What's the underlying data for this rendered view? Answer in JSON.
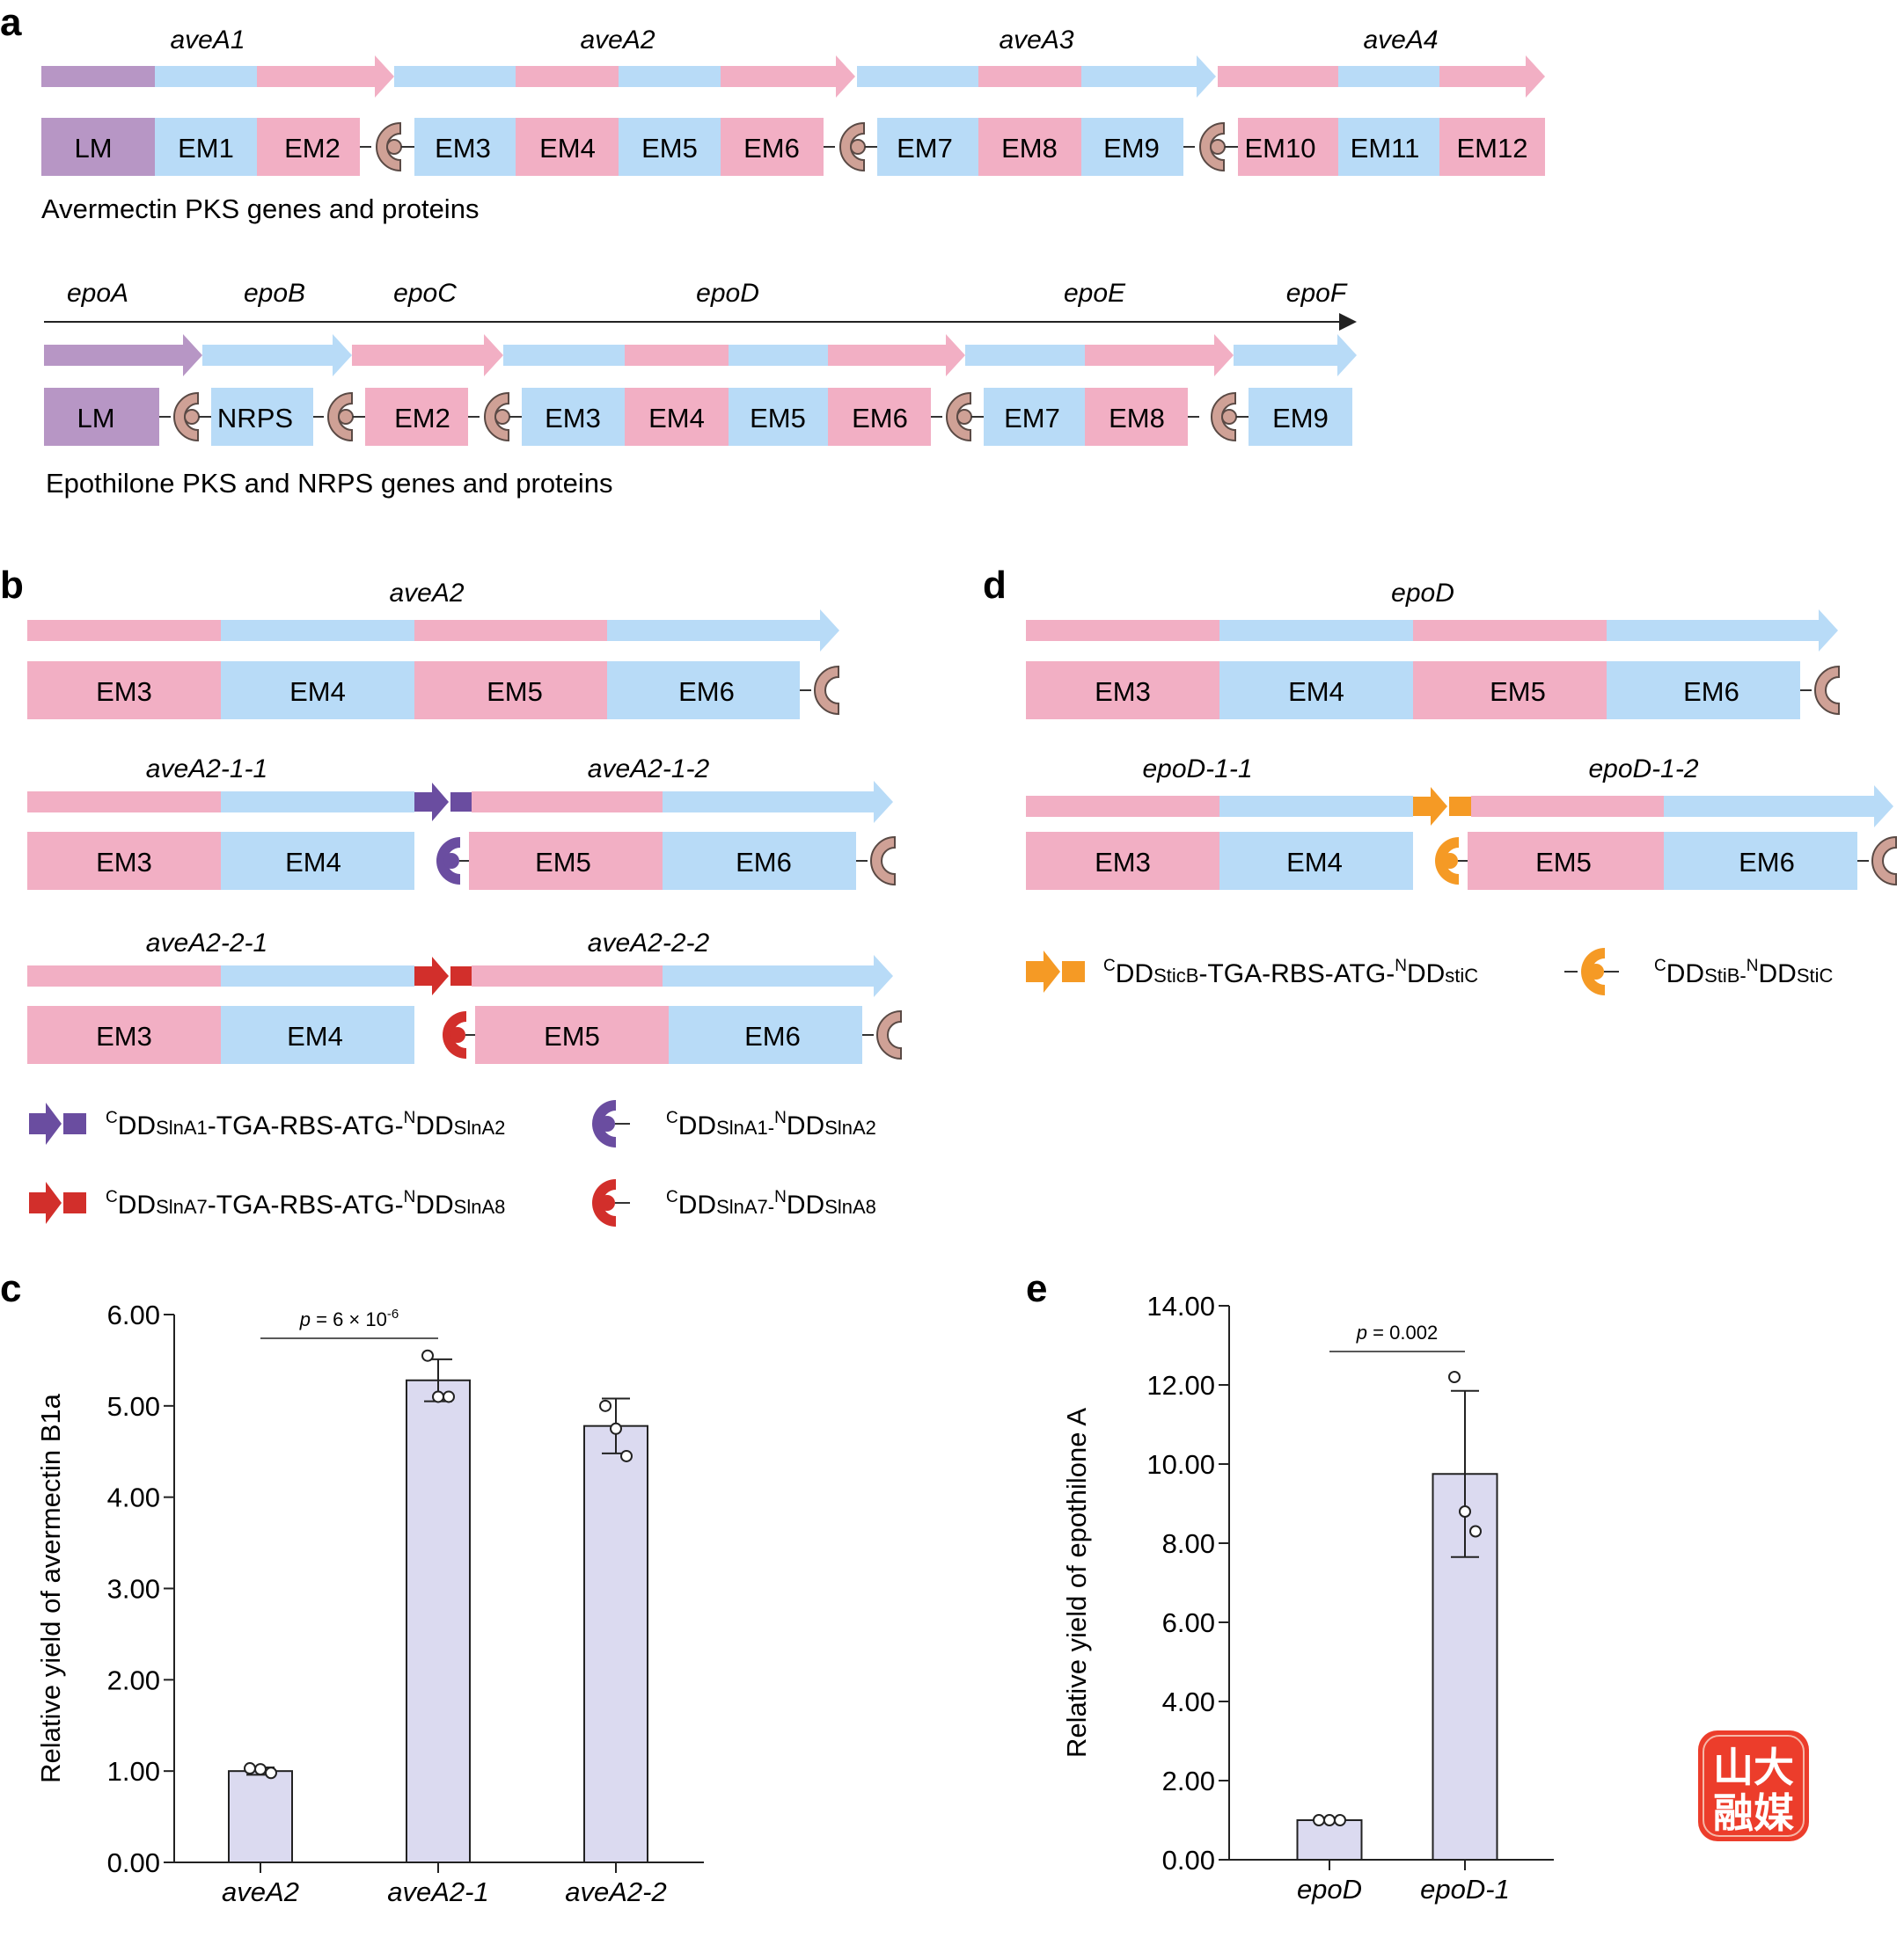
{
  "colors": {
    "pink": "#f2afc4",
    "blue": "#b8dbf7",
    "purple": "#b796c5",
    "docking": "#cfa196",
    "docking_dark": "#5a4a45",
    "slna12": "#6a4da0",
    "slna78": "#d22f2b",
    "stic": "#f59a25",
    "bar": "#dbdaf0"
  },
  "panel_a": {
    "label": "a",
    "avermectin": {
      "genes": [
        "aveA1",
        "aveA2",
        "aveA3",
        "aveA4"
      ],
      "modules": [
        "LM",
        "EM1",
        "EM2",
        "EM3",
        "EM4",
        "EM5",
        "EM6",
        "EM7",
        "EM8",
        "EM9",
        "EM10",
        "EM11",
        "EM12"
      ],
      "caption": "Avermectin PKS genes and proteins"
    },
    "epothilone": {
      "genes": [
        "epoA",
        "epoB",
        "epoC",
        "epoD",
        "epoE",
        "epoF"
      ],
      "modules": [
        "LM",
        "NRPS",
        "EM2",
        "EM3",
        "EM4",
        "EM5",
        "EM6",
        "EM7",
        "EM8",
        "EM9"
      ],
      "caption": "Epothilone PKS and NRPS genes and proteins"
    }
  },
  "panel_b": {
    "label": "b",
    "gene": "aveA2",
    "split1": [
      "aveA2-1-1",
      "aveA2-1-2"
    ],
    "split2": [
      "aveA2-2-1",
      "aveA2-2-2"
    ],
    "modules": [
      "EM3",
      "EM4",
      "EM5",
      "EM6"
    ],
    "legend": [
      {
        "c_sup": "C",
        "a": "DD",
        "a_sub": "SlnA1",
        "mid": "-TGA-RBS-ATG-",
        "n_sup": "N",
        "b": "DD",
        "b_sub": "SlnA2"
      },
      {
        "c_sup": "C",
        "a": "DD",
        "a_sub": "SlnA1-",
        "mid": "",
        "n_sup": "N",
        "b": "DD",
        "b_sub": "SlnA2"
      },
      {
        "c_sup": "C",
        "a": "DD",
        "a_sub": "SlnA7",
        "mid": "-TGA-RBS-ATG-",
        "n_sup": "N",
        "b": "DD",
        "b_sub": "SlnA8"
      },
      {
        "c_sup": "C",
        "a": "DD",
        "a_sub": "SlnA7-",
        "mid": "",
        "n_sup": "N",
        "b": "DD",
        "b_sub": "SlnA8"
      }
    ]
  },
  "panel_d": {
    "label": "d",
    "gene": "epoD",
    "split": [
      "epoD-1-1",
      "epoD-1-2"
    ],
    "modules": [
      "EM3",
      "EM4",
      "EM5",
      "EM6"
    ],
    "legend": [
      {
        "c_sup": "C",
        "a": "DD",
        "a_sub": "SticB",
        "mid": "-TGA-RBS-ATG-",
        "n_sup": "N",
        "b": "DD",
        "b_sub": "stiC"
      },
      {
        "c_sup": "C",
        "a": "DD",
        "a_sub": "StiB-",
        "mid": "",
        "n_sup": "N",
        "b": "DD",
        "b_sub": "StiC"
      }
    ]
  },
  "chart_data": [
    {
      "panel": "c",
      "type": "bar",
      "categories": [
        "aveA2",
        "aveA2-1",
        "aveA2-2"
      ],
      "values": [
        1.0,
        5.28,
        4.78
      ],
      "error": [
        0.04,
        0.23,
        0.3
      ],
      "points": [
        [
          1.03,
          1.02,
          0.98
        ],
        [
          5.55,
          5.1,
          5.1
        ],
        [
          5.0,
          4.75,
          4.45
        ]
      ],
      "ylabel": "Relative yield of avermectin B1a",
      "ylim": [
        0,
        6
      ],
      "yticks": [
        "0.00",
        "1.00",
        "2.00",
        "3.00",
        "4.00",
        "5.00",
        "6.00"
      ],
      "pvalue": {
        "p": "p",
        "text": " = 6 × 10",
        "sup": "-6"
      }
    },
    {
      "panel": "e",
      "type": "bar",
      "categories": [
        "epoD",
        "epoD-1"
      ],
      "values": [
        1.0,
        9.75
      ],
      "error": [
        0.03,
        2.1
      ],
      "points": [
        [
          1.0,
          1.0,
          1.0
        ],
        [
          12.2,
          8.8,
          8.3
        ]
      ],
      "ylabel": "Relative yield of epothilone A",
      "ylim": [
        0,
        14
      ],
      "yticks": [
        "0.00",
        "2.00",
        "4.00",
        "6.00",
        "8.00",
        "10.00",
        "12.00",
        "14.00"
      ],
      "pvalue": {
        "p": "p",
        "text": " = 0.002",
        "sup": ""
      }
    }
  ],
  "watermark": {
    "line1": "山大",
    "line2": "融媒"
  }
}
